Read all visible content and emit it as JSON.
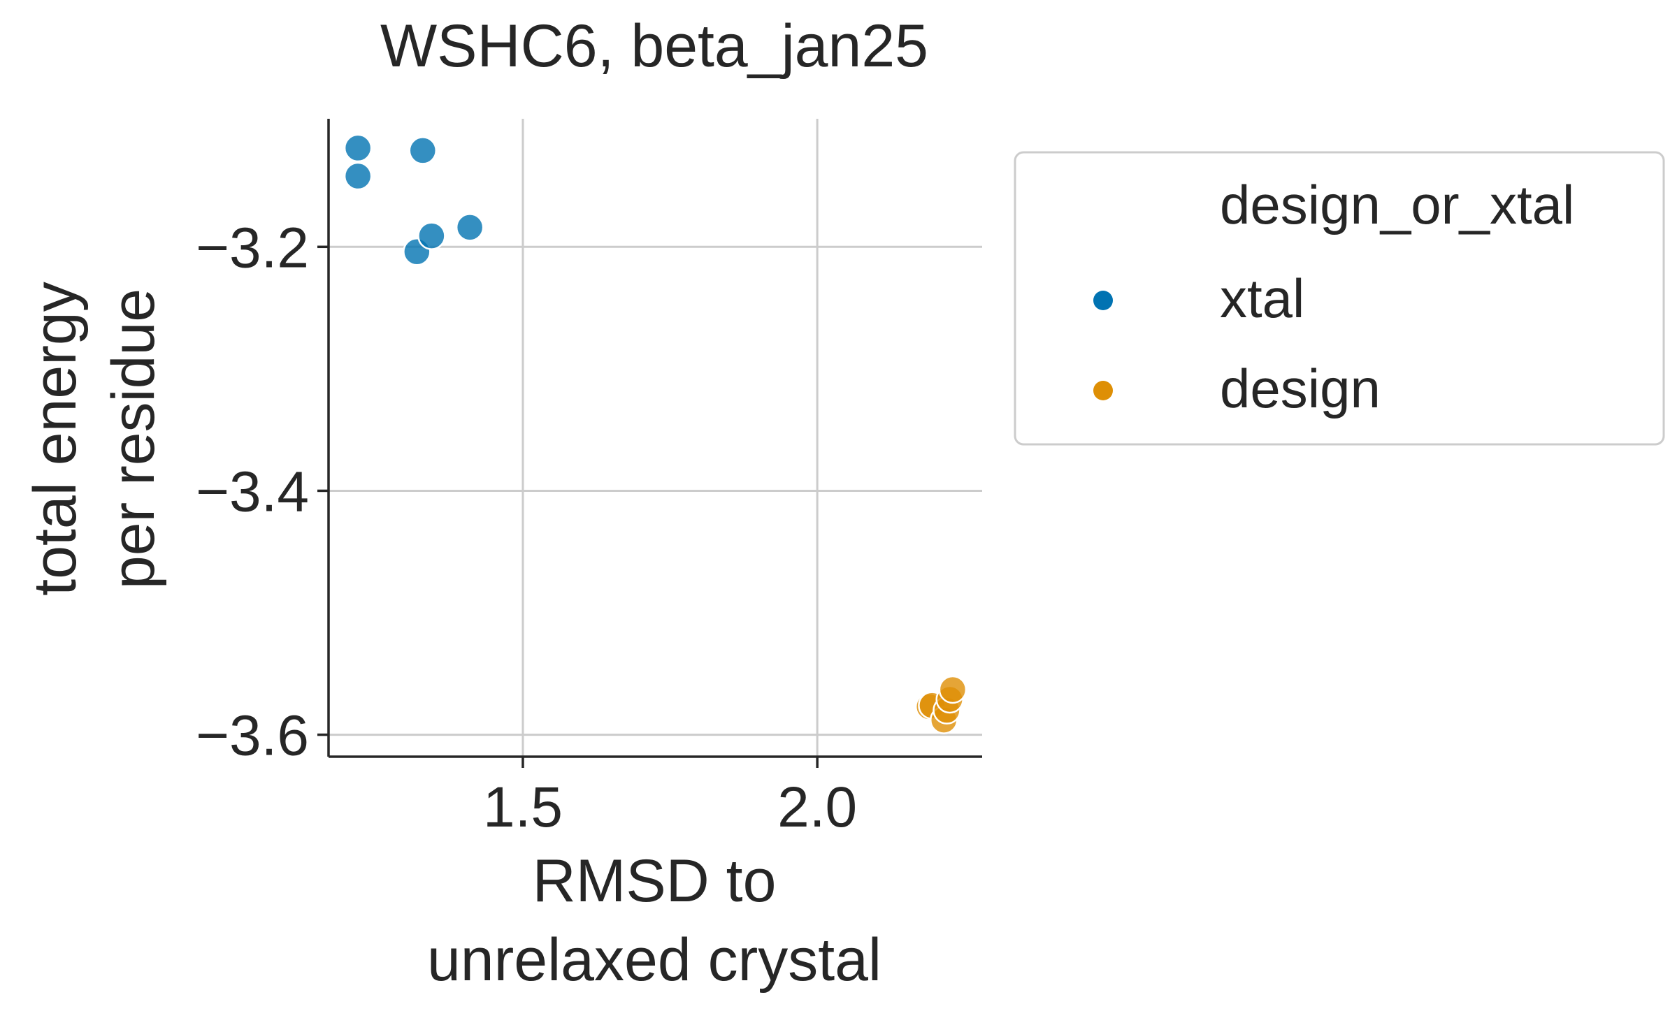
{
  "chart_data": {
    "type": "scatter",
    "title": "WSHC6, beta_jan25",
    "xlabel": [
      "RMSD to",
      "unrelaxed crystal"
    ],
    "ylabel": [
      "total energy",
      "per residue"
    ],
    "xlim": [
      1.17,
      2.28
    ],
    "ylim": [
      -3.618,
      -3.095
    ],
    "xticks": [
      1.5,
      2.0
    ],
    "xtick_labels": [
      "1.5",
      "2.0"
    ],
    "yticks": [
      -3.6,
      -3.4,
      -3.2
    ],
    "ytick_labels": [
      "−3.6",
      "−3.4",
      "−3.2"
    ],
    "grid": true,
    "legend": {
      "title": "design_or_xtal",
      "placement": "outside-right-top",
      "entries": [
        "xtal",
        "design"
      ]
    },
    "series": [
      {
        "name": "xtal",
        "color": "#0173b2",
        "points": [
          {
            "x": 1.22,
            "y": -3.119
          },
          {
            "x": 1.22,
            "y": -3.142
          },
          {
            "x": 1.33,
            "y": -3.121
          },
          {
            "x": 1.32,
            "y": -3.204
          },
          {
            "x": 1.345,
            "y": -3.191
          },
          {
            "x": 1.41,
            "y": -3.184
          }
        ]
      },
      {
        "name": "design",
        "color": "#de8f05",
        "points": [
          {
            "x": 2.19,
            "y": -3.577
          },
          {
            "x": 2.195,
            "y": -3.576
          },
          {
            "x": 2.215,
            "y": -3.588
          },
          {
            "x": 2.22,
            "y": -3.58
          },
          {
            "x": 2.225,
            "y": -3.571
          },
          {
            "x": 2.23,
            "y": -3.563
          }
        ]
      }
    ]
  }
}
